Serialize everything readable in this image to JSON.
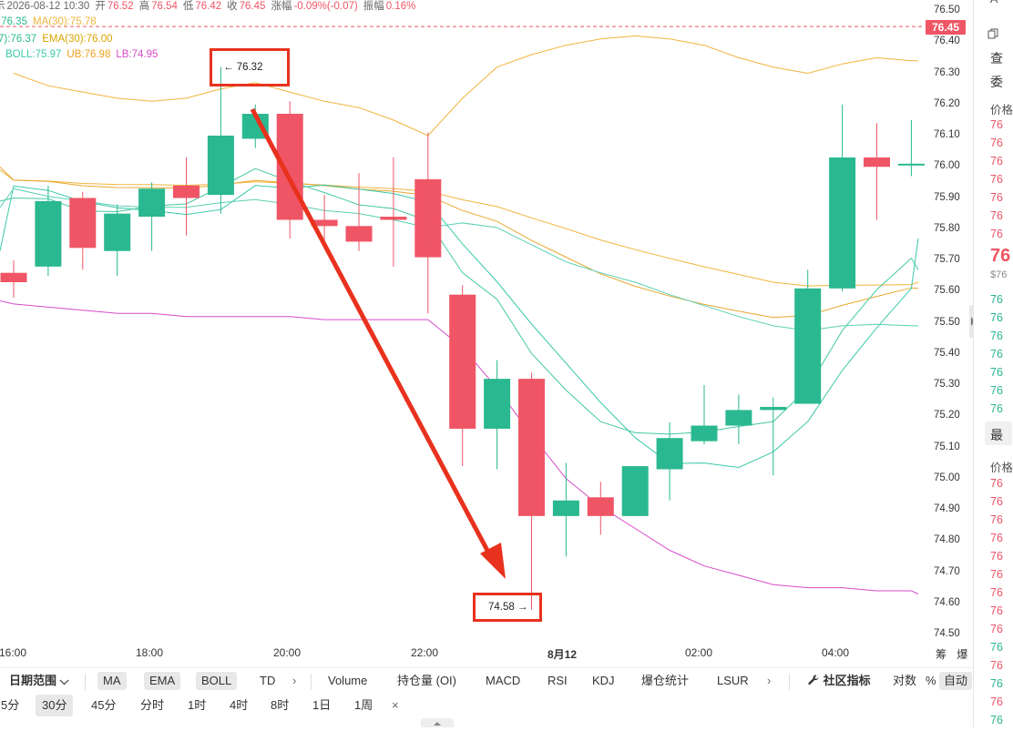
{
  "header": {
    "row1": {
      "prefix": "示",
      "datetime": "2026-08-12 10:30",
      "open_label": "开",
      "open": "76.52",
      "high_label": "高",
      "high": "76.54",
      "low_label": "低",
      "low": "76.42",
      "close_label": "收",
      "close": "76.45",
      "change_label": "涨幅",
      "change": "-0.09%(-0.07)",
      "amp_label": "振幅",
      "amp": "0.16%"
    },
    "row2": {
      "ma_a": ":76.35",
      "ma30": "MA(30):75.78"
    },
    "row3": {
      "ema_a": "7):76.37",
      "ema30": "EMA(30):76.00"
    },
    "row4": {
      "boll": "BOLL:75.97",
      "ub": "UB:76.98",
      "lb": "LB:74.95"
    }
  },
  "colors": {
    "up": "#2ab890",
    "down": "#ef5565",
    "ma": "#f0b43c",
    "boll_upper": "#f0b43c",
    "boll_lower": "#d84cc8",
    "ema": "#3ac8a8",
    "annotation": "#e8321e"
  },
  "current_price": "76.45",
  "price_ticks": [
    "76.50",
    "76.45",
    "76.40",
    "76.30",
    "76.20",
    "76.10",
    "76.00",
    "75.90",
    "75.80",
    "75.70",
    "75.60",
    "75.50",
    "75.40",
    "75.30",
    "75.20",
    "75.10",
    "75.00",
    "74.90",
    "74.80",
    "74.70",
    "74.60",
    "74.50"
  ],
  "time_labels": [
    "16:00",
    "18:00",
    "20:00",
    "22:00",
    "8月12",
    "02:00",
    "04:00"
  ],
  "axis_extra": "筹 爆",
  "candles": [
    {
      "o": 75.66,
      "h": 75.7,
      "l": 75.58,
      "c": 75.63
    },
    {
      "o": 75.68,
      "h": 75.94,
      "l": 75.65,
      "c": 75.89
    },
    {
      "o": 75.9,
      "h": 75.92,
      "l": 75.67,
      "c": 75.74
    },
    {
      "o": 75.73,
      "h": 75.88,
      "l": 75.65,
      "c": 75.85
    },
    {
      "o": 75.84,
      "h": 75.95,
      "l": 75.73,
      "c": 75.93
    },
    {
      "o": 75.94,
      "h": 76.03,
      "l": 75.78,
      "c": 75.9
    },
    {
      "o": 75.91,
      "h": 76.32,
      "l": 75.85,
      "c": 76.1
    },
    {
      "o": 76.09,
      "h": 76.2,
      "l": 76.06,
      "c": 76.17
    },
    {
      "o": 76.17,
      "h": 76.21,
      "l": 75.77,
      "c": 75.83
    },
    {
      "o": 75.83,
      "h": 75.91,
      "l": 75.76,
      "c": 75.81
    },
    {
      "o": 75.81,
      "h": 75.98,
      "l": 75.73,
      "c": 75.76
    },
    {
      "o": 75.84,
      "h": 76.03,
      "l": 75.68,
      "c": 75.83
    },
    {
      "o": 75.96,
      "h": 76.11,
      "l": 75.53,
      "c": 75.71
    },
    {
      "o": 75.59,
      "h": 75.62,
      "l": 75.04,
      "c": 75.16
    },
    {
      "o": 75.16,
      "h": 75.38,
      "l": 75.03,
      "c": 75.32
    },
    {
      "o": 75.32,
      "h": 75.34,
      "l": 74.58,
      "c": 74.88
    },
    {
      "o": 74.88,
      "h": 75.05,
      "l": 74.75,
      "c": 74.93
    },
    {
      "o": 74.94,
      "h": 74.99,
      "l": 74.82,
      "c": 74.88
    },
    {
      "o": 74.88,
      "h": 75.04,
      "l": 74.88,
      "c": 75.04
    },
    {
      "o": 75.03,
      "h": 75.18,
      "l": 74.93,
      "c": 75.13
    },
    {
      "o": 75.12,
      "h": 75.3,
      "l": 75.11,
      "c": 75.17
    },
    {
      "o": 75.17,
      "h": 75.27,
      "l": 75.11,
      "c": 75.22
    },
    {
      "o": 75.22,
      "h": 75.26,
      "l": 75.01,
      "c": 75.23
    },
    {
      "o": 75.24,
      "h": 75.67,
      "l": 75.24,
      "c": 75.61
    },
    {
      "o": 75.61,
      "h": 76.2,
      "l": 75.6,
      "c": 76.03
    },
    {
      "o": 76.03,
      "h": 76.14,
      "l": 75.83,
      "c": 76.0
    },
    {
      "o": 76.01,
      "h": 76.15,
      "l": 75.97,
      "c": 76.01
    }
  ],
  "annotations": {
    "high_label": "← 76.32",
    "low_label": "74.58 →"
  },
  "toolbar1": {
    "date_range": "日期范围",
    "chevron": "⌵",
    "indicators": [
      "MA",
      "EMA",
      "BOLL",
      "TD"
    ],
    "more": "›",
    "sub_indicators": [
      "Volume",
      "持仓量 (OI)",
      "MACD",
      "RSI",
      "KDJ",
      "爆仓统计",
      "LSUR"
    ],
    "more2": "›",
    "community": "社区指标",
    "log": "对数",
    "percent": "%",
    "auto": "自动"
  },
  "toolbar2": {
    "intervals": [
      "5分",
      "30分",
      "45分",
      "分时",
      "1时",
      "4时",
      "8时",
      "1日",
      "1周"
    ],
    "selected": "30分",
    "close": "×"
  },
  "right_panel": {
    "top": "A",
    "copy_icon": "copy-icon",
    "items": [
      "查",
      "委"
    ],
    "price_header": "价格",
    "prices_top": [
      "76",
      "76",
      "76",
      "76",
      "76",
      "76",
      "76"
    ],
    "big_price": "76",
    "big_sub": "$76",
    "prices_green": [
      "76",
      "76",
      "76",
      "76",
      "76",
      "76",
      "76"
    ],
    "latest": "最",
    "price_header2": "价格",
    "prices_bottom": [
      "76",
      "76",
      "76",
      "76",
      "76",
      "76",
      "76",
      "76",
      "76",
      "76",
      "76",
      "76",
      "76",
      "76"
    ]
  }
}
